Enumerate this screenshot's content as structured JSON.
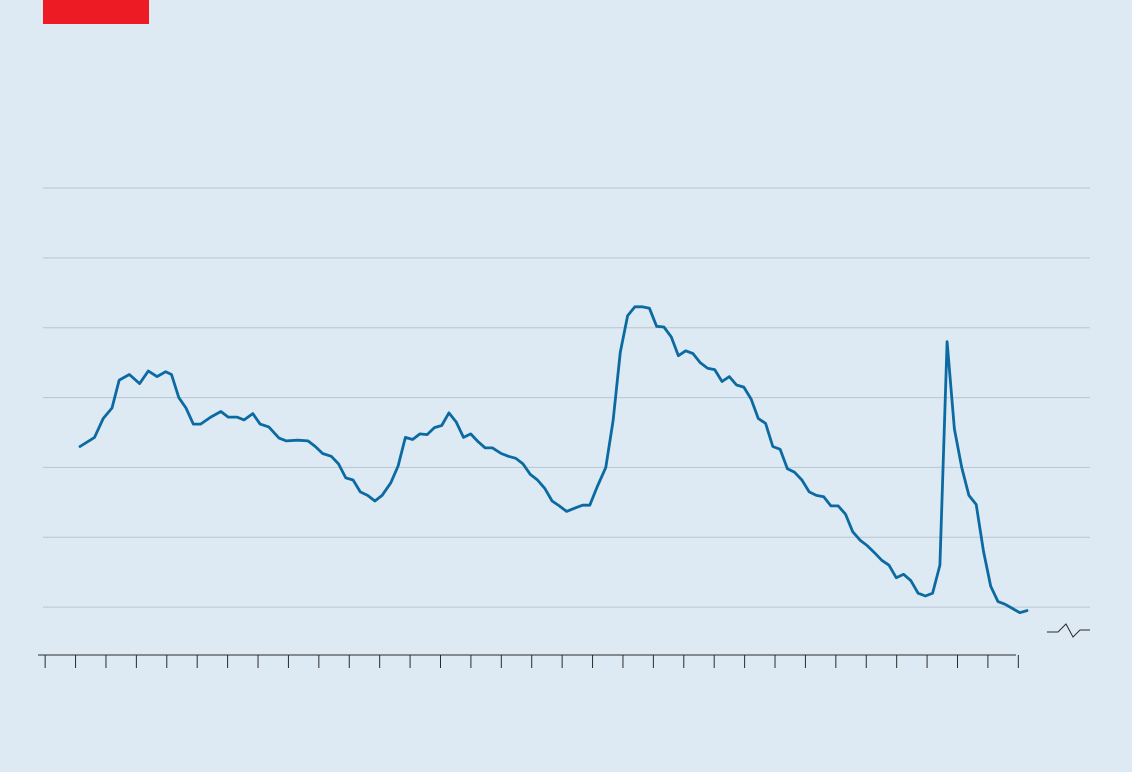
{
  "colors": {
    "background": "#ddeaf3",
    "accent": "#ed1c24",
    "line": "#0b6aa2",
    "grid": "#b7c6d1",
    "axis": "#2a2a2a",
    "break_mark": "#2a2a2a"
  },
  "chart_data": {
    "type": "line",
    "title": "",
    "xlabel": "",
    "ylabel": "",
    "ylim": [
      0,
      7
    ],
    "yticks": [
      1,
      2,
      3,
      4,
      5,
      6,
      7
    ],
    "grid": true,
    "axis_break": true,
    "xlim": [
      -1.2,
      32.3
    ],
    "xtick_count": 33,
    "series": [
      {
        "values": [
          [
            0.0,
            3.3
          ],
          [
            0.5,
            3.43
          ],
          [
            0.8,
            3.7
          ],
          [
            1.1,
            3.85
          ],
          [
            1.35,
            4.25
          ],
          [
            1.7,
            4.33
          ],
          [
            2.05,
            4.2
          ],
          [
            2.35,
            4.38
          ],
          [
            2.65,
            4.3
          ],
          [
            2.95,
            4.37
          ],
          [
            3.15,
            4.33
          ],
          [
            3.4,
            4.0
          ],
          [
            3.65,
            3.85
          ],
          [
            3.9,
            3.62
          ],
          [
            4.15,
            3.62
          ],
          [
            4.5,
            3.72
          ],
          [
            4.85,
            3.8
          ],
          [
            5.1,
            3.72
          ],
          [
            5.4,
            3.72
          ],
          [
            5.65,
            3.68
          ],
          [
            5.95,
            3.77
          ],
          [
            6.2,
            3.62
          ],
          [
            6.5,
            3.58
          ],
          [
            6.85,
            3.42
          ],
          [
            7.1,
            3.38
          ],
          [
            7.5,
            3.39
          ],
          [
            7.85,
            3.38
          ],
          [
            8.1,
            3.3
          ],
          [
            8.35,
            3.2
          ],
          [
            8.65,
            3.16
          ],
          [
            8.9,
            3.05
          ],
          [
            9.15,
            2.85
          ],
          [
            9.4,
            2.82
          ],
          [
            9.65,
            2.65
          ],
          [
            9.9,
            2.6
          ],
          [
            10.15,
            2.52
          ],
          [
            10.4,
            2.6
          ],
          [
            10.7,
            2.78
          ],
          [
            10.95,
            3.02
          ],
          [
            11.2,
            3.43
          ],
          [
            11.45,
            3.4
          ],
          [
            11.7,
            3.48
          ],
          [
            11.95,
            3.47
          ],
          [
            12.2,
            3.57
          ],
          [
            12.45,
            3.6
          ],
          [
            12.7,
            3.78
          ],
          [
            12.95,
            3.65
          ],
          [
            13.2,
            3.43
          ],
          [
            13.45,
            3.48
          ],
          [
            13.7,
            3.37
          ],
          [
            13.95,
            3.28
          ],
          [
            14.2,
            3.28
          ],
          [
            14.5,
            3.2
          ],
          [
            14.75,
            3.16
          ],
          [
            15.0,
            3.13
          ],
          [
            15.25,
            3.05
          ],
          [
            15.5,
            2.9
          ],
          [
            15.75,
            2.82
          ],
          [
            16.0,
            2.7
          ],
          [
            16.25,
            2.52
          ],
          [
            16.5,
            2.45
          ],
          [
            16.75,
            2.37
          ],
          [
            17.05,
            2.42
          ],
          [
            17.3,
            2.46
          ],
          [
            17.55,
            2.46
          ],
          [
            17.8,
            2.72
          ],
          [
            18.1,
            3.0
          ],
          [
            18.35,
            3.67
          ],
          [
            18.6,
            4.65
          ],
          [
            18.85,
            5.17
          ],
          [
            19.1,
            5.3
          ],
          [
            19.35,
            5.3
          ],
          [
            19.6,
            5.28
          ],
          [
            19.85,
            5.02
          ],
          [
            20.1,
            5.01
          ],
          [
            20.35,
            4.87
          ],
          [
            20.6,
            4.6
          ],
          [
            20.85,
            4.67
          ],
          [
            21.1,
            4.63
          ],
          [
            21.35,
            4.5
          ],
          [
            21.6,
            4.42
          ],
          [
            21.85,
            4.4
          ],
          [
            22.1,
            4.23
          ],
          [
            22.35,
            4.3
          ],
          [
            22.6,
            4.18
          ],
          [
            22.85,
            4.15
          ],
          [
            23.1,
            3.98
          ],
          [
            23.35,
            3.7
          ],
          [
            23.6,
            3.63
          ],
          [
            23.85,
            3.3
          ],
          [
            24.1,
            3.26
          ],
          [
            24.35,
            2.98
          ],
          [
            24.6,
            2.93
          ],
          [
            24.85,
            2.82
          ],
          [
            25.1,
            2.65
          ],
          [
            25.35,
            2.6
          ],
          [
            25.6,
            2.58
          ],
          [
            25.85,
            2.45
          ],
          [
            26.1,
            2.45
          ],
          [
            26.35,
            2.33
          ],
          [
            26.6,
            2.08
          ],
          [
            26.85,
            1.96
          ],
          [
            27.1,
            1.88
          ],
          [
            27.35,
            1.78
          ],
          [
            27.6,
            1.67
          ],
          [
            27.85,
            1.6
          ],
          [
            28.1,
            1.42
          ],
          [
            28.35,
            1.47
          ],
          [
            28.6,
            1.38
          ],
          [
            28.85,
            1.2
          ],
          [
            29.1,
            1.16
          ],
          [
            29.35,
            1.2
          ],
          [
            29.6,
            1.6
          ],
          [
            29.85,
            4.8
          ],
          [
            30.1,
            3.55
          ],
          [
            30.35,
            3.0
          ],
          [
            30.6,
            2.6
          ],
          [
            30.85,
            2.47
          ],
          [
            31.1,
            1.8
          ],
          [
            31.35,
            1.3
          ],
          [
            31.6,
            1.08
          ],
          [
            31.85,
            1.04
          ],
          [
            32.1,
            0.98
          ],
          [
            32.35,
            0.92
          ],
          [
            32.6,
            0.95
          ]
        ]
      }
    ]
  }
}
